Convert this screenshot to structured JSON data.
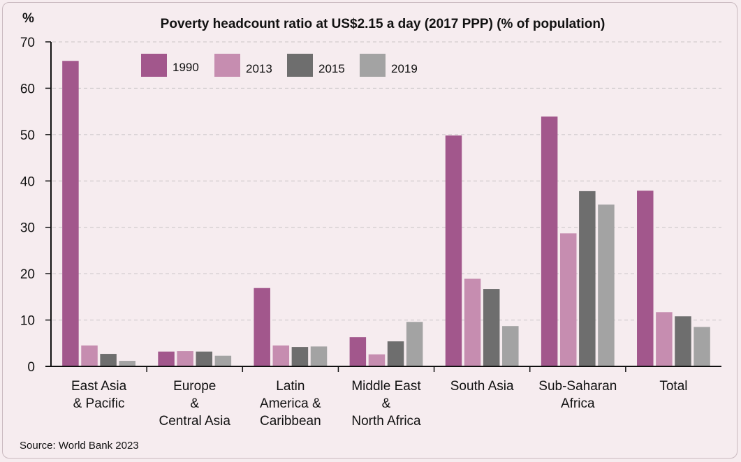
{
  "chart_data": {
    "type": "bar",
    "title": "Poverty headcount ratio at US$2.15 a day (2017 PPP) (% of population)",
    "ylabel": "%",
    "ylim": [
      0,
      70
    ],
    "yticks": [
      "0",
      "10",
      "20",
      "30",
      "40",
      "50",
      "60",
      "70"
    ],
    "grid": "horizontal dashed",
    "legend_position": "top-left",
    "categories": [
      [
        "East Asia",
        "& Pacific"
      ],
      [
        "Europe",
        "&",
        "Central Asia"
      ],
      [
        "Latin",
        "America &",
        "Caribbean"
      ],
      [
        "Middle East",
        "&",
        "North Africa"
      ],
      [
        "South Asia"
      ],
      [
        "Sub-Saharan",
        "Africa"
      ],
      [
        "Total"
      ]
    ],
    "series": [
      {
        "name": "1990",
        "color": "#a2578c",
        "values": [
          65.9,
          3.2,
          16.9,
          6.3,
          49.8,
          53.9,
          37.9
        ]
      },
      {
        "name": "2013",
        "color": "#c68db0",
        "values": [
          4.5,
          3.3,
          4.5,
          2.6,
          18.9,
          28.7,
          11.7
        ]
      },
      {
        "name": "2015",
        "color": "#6e6e6e",
        "values": [
          2.7,
          3.2,
          4.2,
          5.4,
          16.7,
          37.8,
          10.8
        ]
      },
      {
        "name": "2019",
        "color": "#a3a3a3",
        "values": [
          1.2,
          2.3,
          4.3,
          9.6,
          8.7,
          34.9,
          8.5
        ]
      }
    ],
    "source": "Source: World Bank 2023"
  }
}
